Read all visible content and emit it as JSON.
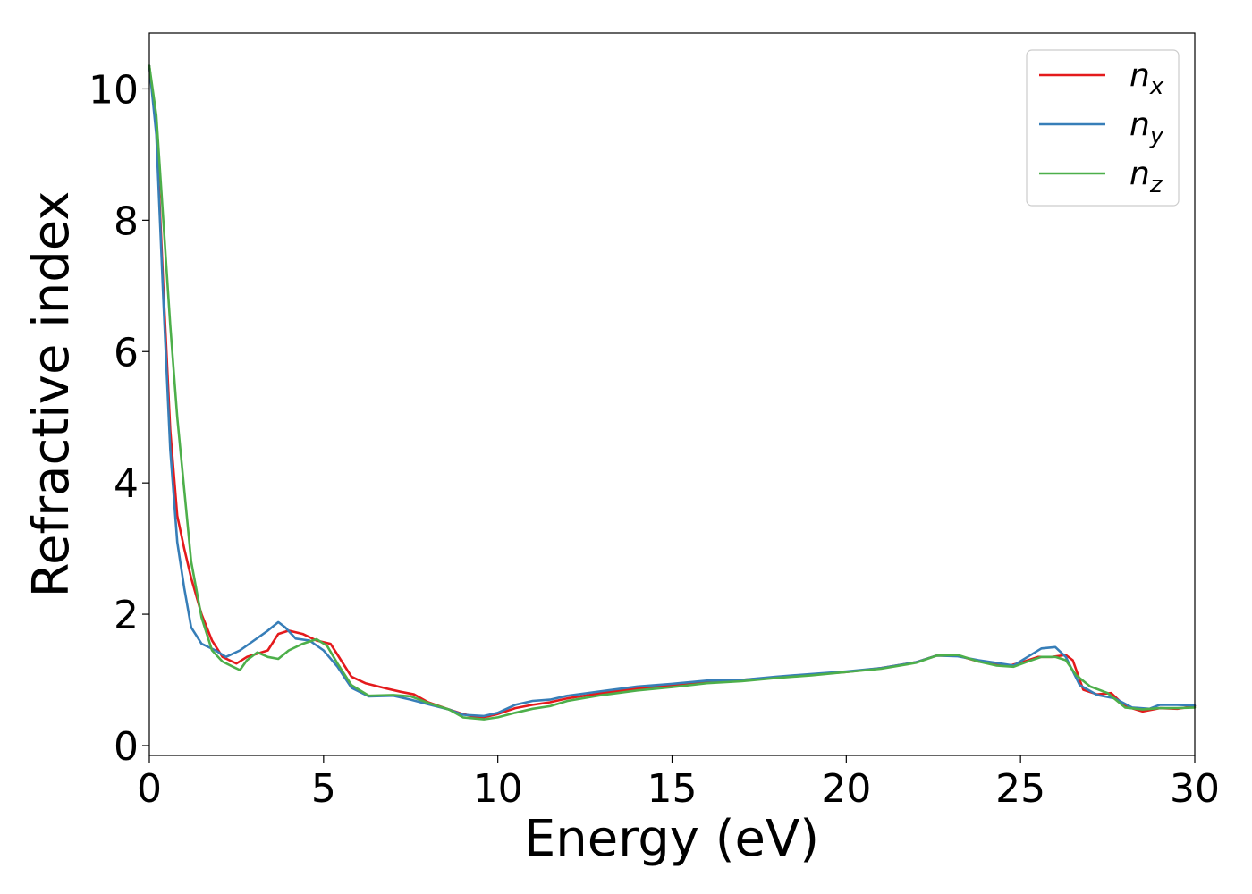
{
  "chart_data": {
    "type": "line",
    "title": "",
    "xlabel": "Energy (eV)",
    "ylabel": "Refractive index",
    "xlim": [
      0,
      30
    ],
    "ylim": [
      -0.15,
      10.85
    ],
    "xticks": [
      "0",
      "5",
      "10",
      "15",
      "20",
      "25",
      "30"
    ],
    "yticks": [
      "0",
      "2",
      "4",
      "6",
      "8",
      "10"
    ],
    "grid": false,
    "legend_position": "top-right",
    "series": [
      {
        "name": "n",
        "subscript": "x",
        "color": "#e41a1c",
        "points": [
          [
            0,
            10.35
          ],
          [
            0.2,
            9.4
          ],
          [
            0.4,
            7.0
          ],
          [
            0.6,
            4.8
          ],
          [
            0.8,
            3.5
          ],
          [
            1.0,
            3.0
          ],
          [
            1.2,
            2.55
          ],
          [
            1.5,
            2.0
          ],
          [
            1.8,
            1.6
          ],
          [
            2.1,
            1.35
          ],
          [
            2.5,
            1.25
          ],
          [
            2.8,
            1.35
          ],
          [
            3.1,
            1.4
          ],
          [
            3.4,
            1.45
          ],
          [
            3.7,
            1.7
          ],
          [
            4.0,
            1.75
          ],
          [
            4.4,
            1.7
          ],
          [
            4.8,
            1.6
          ],
          [
            5.2,
            1.55
          ],
          [
            5.5,
            1.3
          ],
          [
            5.8,
            1.05
          ],
          [
            6.2,
            0.95
          ],
          [
            6.8,
            0.87
          ],
          [
            7.2,
            0.82
          ],
          [
            7.6,
            0.78
          ],
          [
            8.0,
            0.66
          ],
          [
            8.6,
            0.55
          ],
          [
            9.0,
            0.48
          ],
          [
            9.5,
            0.42
          ],
          [
            10.0,
            0.48
          ],
          [
            10.5,
            0.57
          ],
          [
            11.0,
            0.62
          ],
          [
            11.5,
            0.66
          ],
          [
            12.0,
            0.72
          ],
          [
            13.0,
            0.8
          ],
          [
            14.0,
            0.87
          ],
          [
            15.0,
            0.92
          ],
          [
            16.0,
            0.97
          ],
          [
            17.0,
            1.0
          ],
          [
            18.0,
            1.04
          ],
          [
            19.0,
            1.08
          ],
          [
            20.0,
            1.12
          ],
          [
            21.0,
            1.18
          ],
          [
            22.0,
            1.27
          ],
          [
            22.6,
            1.37
          ],
          [
            23.2,
            1.37
          ],
          [
            23.8,
            1.28
          ],
          [
            24.2,
            1.25
          ],
          [
            24.7,
            1.22
          ],
          [
            25.1,
            1.28
          ],
          [
            25.5,
            1.35
          ],
          [
            25.9,
            1.35
          ],
          [
            26.3,
            1.38
          ],
          [
            26.5,
            1.3
          ],
          [
            26.8,
            0.85
          ],
          [
            27.2,
            0.78
          ],
          [
            27.6,
            0.8
          ],
          [
            28.0,
            0.6
          ],
          [
            28.5,
            0.52
          ],
          [
            29.0,
            0.57
          ],
          [
            29.5,
            0.56
          ],
          [
            30.0,
            0.6
          ]
        ]
      },
      {
        "name": "n",
        "subscript": "y",
        "color": "#377eb8",
        "points": [
          [
            0,
            10.35
          ],
          [
            0.2,
            9.3
          ],
          [
            0.4,
            6.8
          ],
          [
            0.6,
            4.5
          ],
          [
            0.8,
            3.1
          ],
          [
            1.0,
            2.4
          ],
          [
            1.2,
            1.8
          ],
          [
            1.5,
            1.55
          ],
          [
            1.9,
            1.45
          ],
          [
            2.2,
            1.35
          ],
          [
            2.6,
            1.45
          ],
          [
            3.0,
            1.6
          ],
          [
            3.4,
            1.75
          ],
          [
            3.7,
            1.88
          ],
          [
            3.9,
            1.8
          ],
          [
            4.2,
            1.63
          ],
          [
            4.6,
            1.6
          ],
          [
            5.0,
            1.45
          ],
          [
            5.4,
            1.2
          ],
          [
            5.8,
            0.88
          ],
          [
            6.3,
            0.75
          ],
          [
            7.0,
            0.76
          ],
          [
            7.5,
            0.7
          ],
          [
            8.0,
            0.63
          ],
          [
            8.6,
            0.55
          ],
          [
            9.0,
            0.47
          ],
          [
            9.6,
            0.45
          ],
          [
            10.0,
            0.5
          ],
          [
            10.5,
            0.62
          ],
          [
            11.0,
            0.68
          ],
          [
            11.5,
            0.7
          ],
          [
            12.0,
            0.76
          ],
          [
            13.0,
            0.83
          ],
          [
            14.0,
            0.9
          ],
          [
            15.0,
            0.94
          ],
          [
            16.0,
            0.99
          ],
          [
            17.0,
            1.0
          ],
          [
            18.0,
            1.05
          ],
          [
            19.0,
            1.09
          ],
          [
            20.0,
            1.13
          ],
          [
            21.0,
            1.18
          ],
          [
            22.0,
            1.27
          ],
          [
            22.6,
            1.37
          ],
          [
            23.2,
            1.36
          ],
          [
            23.8,
            1.3
          ],
          [
            24.3,
            1.26
          ],
          [
            24.8,
            1.22
          ],
          [
            25.2,
            1.35
          ],
          [
            25.6,
            1.48
          ],
          [
            26.0,
            1.5
          ],
          [
            26.3,
            1.35
          ],
          [
            26.7,
            0.92
          ],
          [
            27.2,
            0.77
          ],
          [
            27.7,
            0.72
          ],
          [
            28.2,
            0.58
          ],
          [
            28.7,
            0.56
          ],
          [
            29.0,
            0.62
          ],
          [
            29.5,
            0.62
          ],
          [
            30.0,
            0.61
          ]
        ]
      },
      {
        "name": "n",
        "subscript": "z",
        "color": "#4daf4a",
        "points": [
          [
            0,
            10.35
          ],
          [
            0.2,
            9.6
          ],
          [
            0.4,
            8.0
          ],
          [
            0.6,
            6.4
          ],
          [
            0.8,
            5.0
          ],
          [
            1.0,
            3.9
          ],
          [
            1.2,
            2.8
          ],
          [
            1.5,
            1.95
          ],
          [
            1.8,
            1.45
          ],
          [
            2.1,
            1.28
          ],
          [
            2.4,
            1.2
          ],
          [
            2.6,
            1.15
          ],
          [
            2.8,
            1.3
          ],
          [
            3.1,
            1.42
          ],
          [
            3.4,
            1.35
          ],
          [
            3.7,
            1.32
          ],
          [
            4.0,
            1.45
          ],
          [
            4.4,
            1.55
          ],
          [
            4.8,
            1.62
          ],
          [
            5.1,
            1.52
          ],
          [
            5.4,
            1.25
          ],
          [
            5.8,
            0.92
          ],
          [
            6.3,
            0.76
          ],
          [
            7.0,
            0.77
          ],
          [
            7.5,
            0.75
          ],
          [
            8.0,
            0.65
          ],
          [
            8.6,
            0.55
          ],
          [
            9.0,
            0.43
          ],
          [
            9.6,
            0.4
          ],
          [
            10.0,
            0.43
          ],
          [
            10.5,
            0.5
          ],
          [
            11.0,
            0.56
          ],
          [
            11.5,
            0.6
          ],
          [
            12.0,
            0.68
          ],
          [
            13.0,
            0.77
          ],
          [
            14.0,
            0.84
          ],
          [
            15.0,
            0.89
          ],
          [
            16.0,
            0.95
          ],
          [
            17.0,
            0.98
          ],
          [
            18.0,
            1.03
          ],
          [
            19.0,
            1.07
          ],
          [
            20.0,
            1.12
          ],
          [
            21.0,
            1.17
          ],
          [
            22.0,
            1.26
          ],
          [
            22.6,
            1.37
          ],
          [
            23.2,
            1.38
          ],
          [
            23.8,
            1.28
          ],
          [
            24.3,
            1.22
          ],
          [
            24.8,
            1.2
          ],
          [
            25.2,
            1.28
          ],
          [
            25.6,
            1.35
          ],
          [
            26.0,
            1.35
          ],
          [
            26.3,
            1.3
          ],
          [
            26.6,
            1.07
          ],
          [
            27.0,
            0.9
          ],
          [
            27.5,
            0.8
          ],
          [
            28.0,
            0.58
          ],
          [
            28.5,
            0.55
          ],
          [
            29.0,
            0.57
          ],
          [
            29.5,
            0.57
          ],
          [
            30.0,
            0.58
          ]
        ]
      }
    ]
  }
}
